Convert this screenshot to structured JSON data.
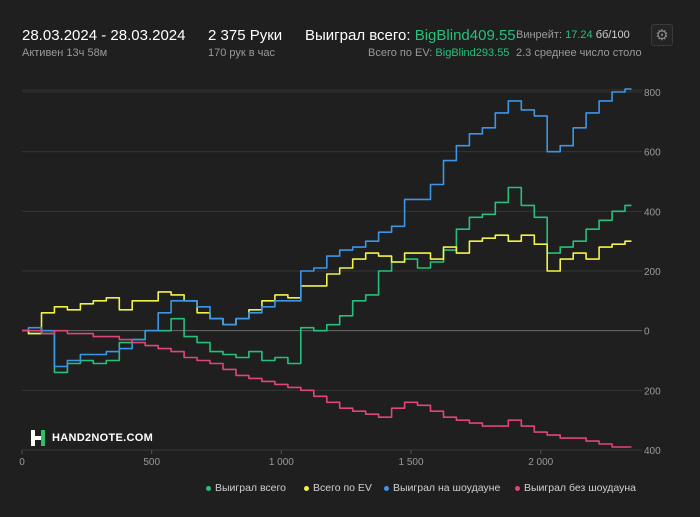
{
  "header": {
    "date_range": "28.03.2024 - 28.03.2024",
    "active": "Активен 13ч 58м",
    "hands": "2 375 Руки",
    "hands_per_hour": "170 рук в час",
    "won_total_label": "Выиграл всего:",
    "won_total_value": "BigBlind409.55",
    "ev_label": "Всего по EV:",
    "ev_value": "BigBlind293.55",
    "winrate_label": "Винрейт:",
    "winrate_value": "17.24",
    "winrate_unit": "бб/100",
    "avg_tables": "2.3 среднее число столо"
  },
  "logo": {
    "text": "HAND2NOTE.COM"
  },
  "legend": [
    {
      "label": "Выиграл всего",
      "color": "#27c07a"
    },
    {
      "label": "Всего по EV",
      "color": "#f2f24a"
    },
    {
      "label": "Выиграл на шоудауне",
      "color": "#3d95e6"
    },
    {
      "label": "Выиграл без шоудауна",
      "color": "#e0457a"
    }
  ],
  "chart_data": {
    "type": "line",
    "xlim": [
      0,
      2375
    ],
    "ylim": [
      -400,
      800
    ],
    "x_ticks": [
      0,
      500,
      1000,
      1500,
      2000
    ],
    "x_tick_labels": [
      "0",
      "500",
      "1 000",
      "1 500",
      "2 000"
    ],
    "y_ticks": [
      800,
      600,
      400,
      200,
      0,
      -200,
      -400
    ],
    "y_tick_labels": [
      "800",
      "600",
      "400",
      "200",
      "0",
      "200",
      "400"
    ],
    "grid": true,
    "x": [
      0,
      50,
      100,
      150,
      200,
      250,
      300,
      350,
      400,
      450,
      500,
      550,
      600,
      650,
      700,
      750,
      800,
      850,
      900,
      950,
      1000,
      1050,
      1100,
      1150,
      1200,
      1250,
      1300,
      1350,
      1400,
      1450,
      1500,
      1550,
      1600,
      1650,
      1700,
      1750,
      1800,
      1850,
      1900,
      1950,
      2000,
      2050,
      2100,
      2150,
      2200,
      2250,
      2300,
      2350
    ],
    "series": [
      {
        "name": "Выиграл всего",
        "color": "#27c07a",
        "values": [
          0,
          -10,
          -10,
          -140,
          -110,
          -100,
          -110,
          -100,
          -40,
          -30,
          0,
          0,
          40,
          -20,
          -40,
          -70,
          -80,
          -90,
          -70,
          -100,
          -90,
          -110,
          10,
          0,
          20,
          50,
          100,
          120,
          200,
          230,
          240,
          210,
          230,
          270,
          340,
          380,
          390,
          430,
          480,
          420,
          380,
          260,
          280,
          300,
          340,
          370,
          400,
          420
        ]
      },
      {
        "name": "Всего по EV",
        "color": "#f2f24a",
        "values": [
          0,
          -10,
          60,
          80,
          70,
          90,
          100,
          110,
          70,
          100,
          100,
          130,
          120,
          100,
          60,
          40,
          20,
          40,
          70,
          100,
          120,
          110,
          150,
          150,
          190,
          210,
          240,
          260,
          250,
          230,
          260,
          260,
          240,
          280,
          260,
          300,
          310,
          320,
          300,
          320,
          290,
          200,
          240,
          260,
          240,
          280,
          290,
          300
        ]
      },
      {
        "name": "Выиграл на шоудауне",
        "color": "#3d95e6",
        "values": [
          0,
          10,
          0,
          -120,
          -100,
          -80,
          -80,
          -70,
          -60,
          -30,
          0,
          60,
          100,
          100,
          80,
          40,
          20,
          40,
          60,
          80,
          100,
          100,
          200,
          210,
          250,
          270,
          280,
          300,
          330,
          350,
          440,
          440,
          490,
          570,
          620,
          660,
          680,
          730,
          770,
          740,
          720,
          600,
          620,
          680,
          730,
          770,
          800,
          810
        ]
      },
      {
        "name": "Выиграл без шоудауна",
        "color": "#e0457a",
        "values": [
          0,
          0,
          -10,
          0,
          -10,
          -10,
          -20,
          -20,
          -30,
          -40,
          -50,
          -60,
          -70,
          -90,
          -100,
          -110,
          -130,
          -150,
          -160,
          -170,
          -180,
          -190,
          -200,
          -220,
          -240,
          -260,
          -270,
          -280,
          -290,
          -260,
          -240,
          -250,
          -270,
          -290,
          -300,
          -310,
          -320,
          -320,
          -300,
          -320,
          -340,
          -350,
          -360,
          -360,
          -370,
          -380,
          -390,
          -390
        ]
      }
    ]
  }
}
